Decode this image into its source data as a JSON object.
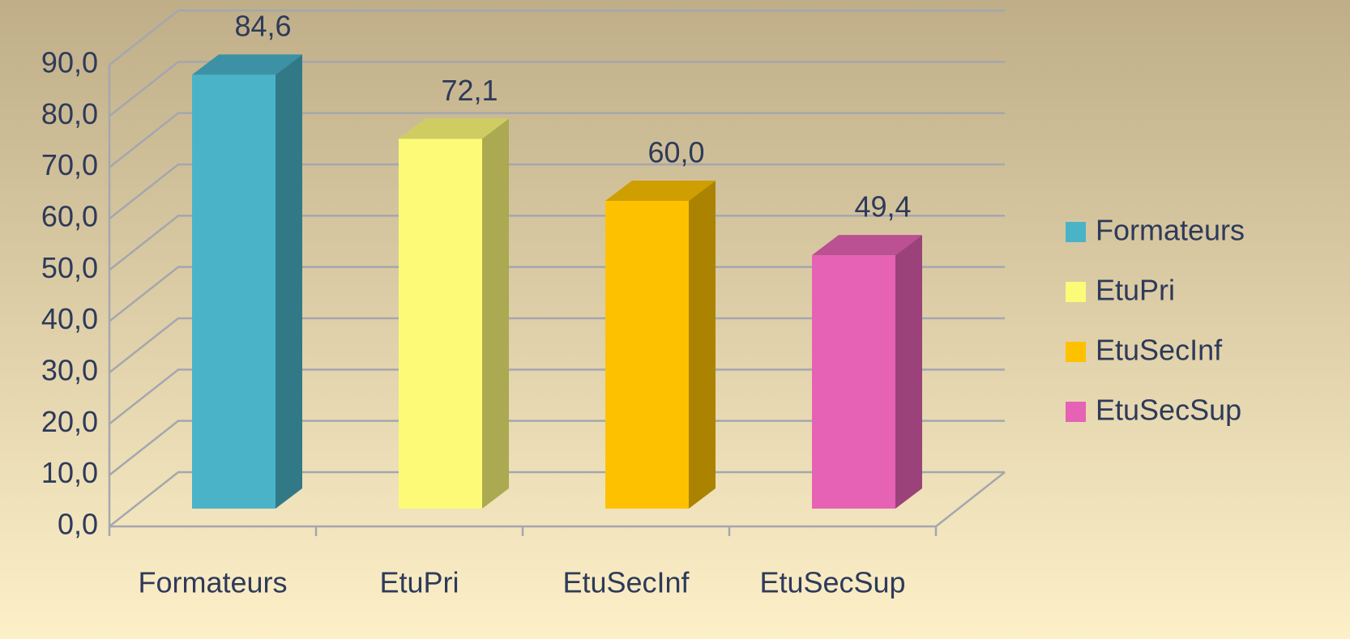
{
  "chart_data": {
    "type": "bar3d",
    "categories": [
      "Formateurs",
      "EtuPri",
      "EtuSecInf",
      "EtuSecSup"
    ],
    "values": [
      84.6,
      72.1,
      60.0,
      49.4
    ],
    "value_labels": [
      "84,6",
      "72,1",
      "60,0",
      "49,4"
    ],
    "colors": [
      "#4ab3c8",
      "#fdfa78",
      "#fdc100",
      "#e562b4"
    ],
    "ylim": [
      0,
      90
    ],
    "yticks": [
      {
        "value": 0,
        "label": "0,0"
      },
      {
        "value": 10,
        "label": "10,0"
      },
      {
        "value": 20,
        "label": "20,0"
      },
      {
        "value": 30,
        "label": "30,0"
      },
      {
        "value": 40,
        "label": "40,0"
      },
      {
        "value": 50,
        "label": "50,0"
      },
      {
        "value": 60,
        "label": "60,0"
      },
      {
        "value": 70,
        "label": "70,0"
      },
      {
        "value": 80,
        "label": "80,0"
      },
      {
        "value": 90,
        "label": "90,0"
      }
    ],
    "grid": true,
    "legend": "right"
  }
}
